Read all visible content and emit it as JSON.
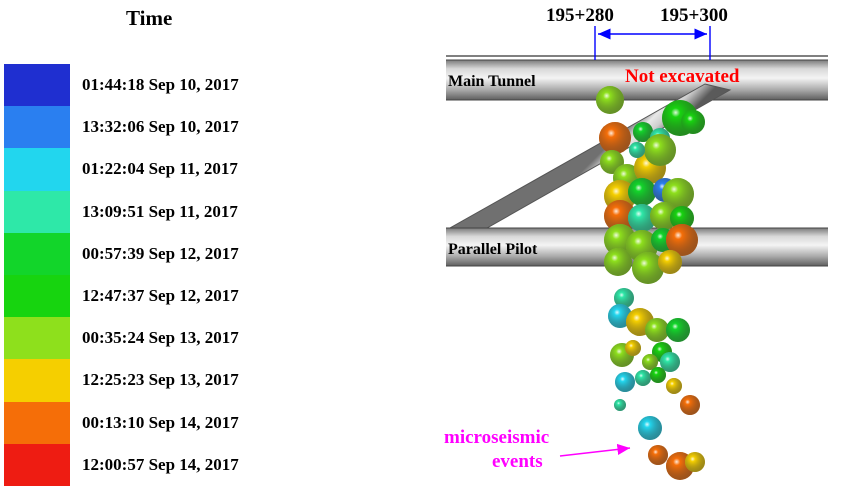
{
  "legend": {
    "title": "Time",
    "entries": [
      {
        "label": "01:44:18 Sep 10, 2017",
        "color": "#1f2fd0"
      },
      {
        "label": "13:32:06 Sep 10, 2017",
        "color": "#2a7ff0"
      },
      {
        "label": "01:22:04 Sep 11, 2017",
        "color": "#22d6ee"
      },
      {
        "label": "13:09:51 Sep 11, 2017",
        "color": "#2ee8a8"
      },
      {
        "label": "00:57:39 Sep 12, 2017",
        "color": "#12d52a"
      },
      {
        "label": "12:47:37 Sep 12, 2017",
        "color": "#17d40f"
      },
      {
        "label": "00:35:24 Sep 13, 2017",
        "color": "#8ee01c"
      },
      {
        "label": "12:25:23 Sep 13, 2017",
        "color": "#f5cf00"
      },
      {
        "label": "00:13:10 Sep 14, 2017",
        "color": "#f56e08"
      },
      {
        "label": "12:00:57 Sep 14, 2017",
        "color": "#ee1c12"
      }
    ]
  },
  "scene": {
    "chainage_left": "195+280",
    "chainage_right": "195+300",
    "main_tunnel_label": "Main Tunnel",
    "not_excavated_label": "Not excavated",
    "parallel_pilot_label": "Parallel Pilot",
    "annotation_line1": "microseismic",
    "annotation_line2": "events",
    "annotation_color": "#ff00ff",
    "not_excavated_color": "#ff0000",
    "dimension_color": "#0000ff"
  }
}
